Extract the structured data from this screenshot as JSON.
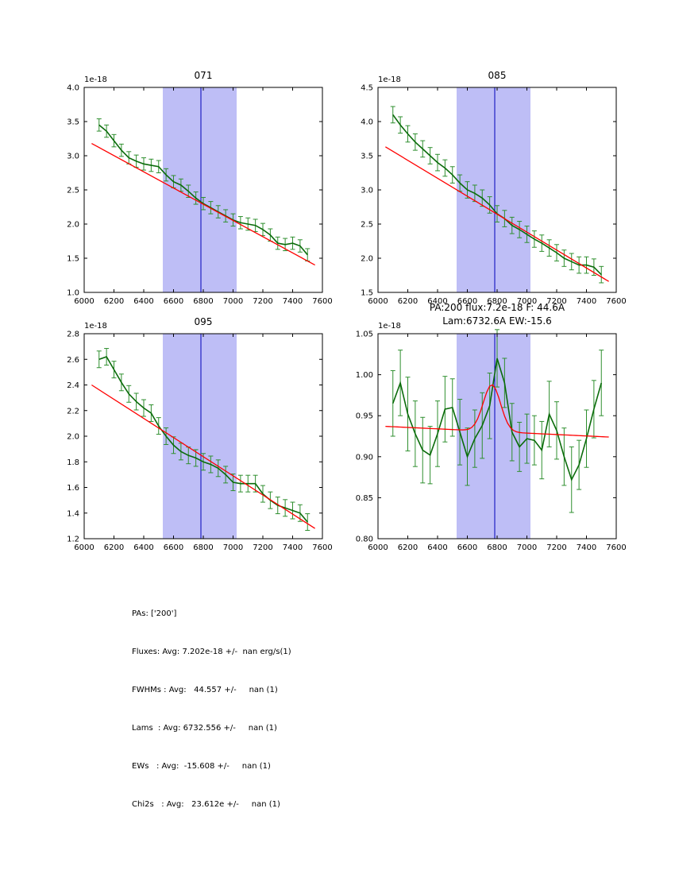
{
  "style": {
    "background": "#ffffff",
    "err_color": "#2f8f2f",
    "line_color": "#0a6b0a",
    "fit_color": "#ff0000",
    "band_color": "rgba(110,110,235,0.45)",
    "vline_color": "#0000bb",
    "axis_color": "#000000"
  },
  "footer_lines": [
    "PAs: ['200']",
    "Fluxes: Avg: 7.202e-18 +/-  nan erg/s(1)",
    "FWHMs : Avg:   44.557 +/-     nan (1)",
    "Lams  : Avg: 6732.556 +/-     nan (1)",
    "EWs   : Avg:  -15.608 +/-     nan (1)",
    "Chi2s   : Avg:   23.612e +/-     nan (1)"
  ],
  "chart_data": [
    {
      "type": "line",
      "title": "071",
      "offset_text": "1e-18",
      "xlim": [
        6000,
        7600
      ],
      "ylim": [
        1.0,
        4.0
      ],
      "xticks": {
        "values": [
          6000,
          6200,
          6400,
          6600,
          6800,
          7000,
          7200,
          7400,
          7600
        ],
        "labels": [
          "6000",
          "6200",
          "6400",
          "6600",
          "6800",
          "7000",
          "7200",
          "7400",
          "7600"
        ]
      },
      "yticks": {
        "values": [
          1.0,
          1.5,
          2.0,
          2.5,
          3.0,
          3.5,
          4.0
        ],
        "labels": [
          "1.0",
          "1.5",
          "2.0",
          "2.5",
          "3.0",
          "3.5",
          "4.0"
        ]
      },
      "band": {
        "x0": 6528,
        "x1": 7024
      },
      "vline": 6784,
      "x": [
        6100,
        6150,
        6200,
        6250,
        6300,
        6350,
        6400,
        6450,
        6500,
        6550,
        6600,
        6650,
        6700,
        6750,
        6800,
        6850,
        6900,
        6950,
        7000,
        7050,
        7100,
        7150,
        7200,
        7250,
        7300,
        7350,
        7400,
        7450,
        7500
      ],
      "y": [
        3.45,
        3.36,
        3.22,
        3.08,
        2.97,
        2.92,
        2.88,
        2.86,
        2.84,
        2.72,
        2.62,
        2.57,
        2.48,
        2.38,
        2.3,
        2.24,
        2.18,
        2.12,
        2.06,
        2.02,
        2.0,
        1.98,
        1.92,
        1.84,
        1.72,
        1.7,
        1.72,
        1.68,
        1.55
      ],
      "yerr": 0.09,
      "fit": {
        "type": "linear",
        "x": [
          6050,
          7550
        ],
        "y": [
          3.18,
          1.4
        ]
      }
    },
    {
      "type": "line",
      "title": "085",
      "offset_text": "1e-18",
      "xlim": [
        6000,
        7600
      ],
      "ylim": [
        1.5,
        4.5
      ],
      "xticks": {
        "values": [
          6000,
          6200,
          6400,
          6600,
          6800,
          7000,
          7200,
          7400,
          7600
        ],
        "labels": [
          "6000",
          "6200",
          "6400",
          "6600",
          "6800",
          "7000",
          "7200",
          "7400",
          "7600"
        ]
      },
      "yticks": {
        "values": [
          1.5,
          2.0,
          2.5,
          3.0,
          3.5,
          4.0,
          4.5
        ],
        "labels": [
          "1.5",
          "2.0",
          "2.5",
          "3.0",
          "3.5",
          "4.0",
          "4.5"
        ]
      },
      "band": {
        "x0": 6528,
        "x1": 7024
      },
      "vline": 6784,
      "x": [
        6100,
        6150,
        6200,
        6250,
        6300,
        6350,
        6400,
        6450,
        6500,
        6550,
        6600,
        6650,
        6700,
        6750,
        6800,
        6850,
        6900,
        6950,
        7000,
        7050,
        7100,
        7150,
        7200,
        7250,
        7300,
        7350,
        7400,
        7450,
        7500
      ],
      "y": [
        4.1,
        3.95,
        3.82,
        3.7,
        3.6,
        3.5,
        3.4,
        3.32,
        3.22,
        3.1,
        3.0,
        2.95,
        2.88,
        2.78,
        2.65,
        2.58,
        2.48,
        2.42,
        2.35,
        2.28,
        2.22,
        2.15,
        2.08,
        2.0,
        1.95,
        1.9,
        1.9,
        1.87,
        1.76
      ],
      "yerr": 0.12,
      "fit": {
        "type": "linear",
        "x": [
          6050,
          7550
        ],
        "y": [
          3.63,
          1.66
        ]
      }
    },
    {
      "type": "line",
      "title": "095",
      "offset_text": "1e-18",
      "xlim": [
        6000,
        7600
      ],
      "ylim": [
        1.2,
        2.8
      ],
      "xticks": {
        "values": [
          6000,
          6200,
          6400,
          6600,
          6800,
          7000,
          7200,
          7400,
          7600
        ],
        "labels": [
          "6000",
          "6200",
          "6400",
          "6600",
          "6800",
          "7000",
          "7200",
          "7400",
          "7600"
        ]
      },
      "yticks": {
        "values": [
          1.2,
          1.4,
          1.6,
          1.8,
          2.0,
          2.2,
          2.4,
          2.6,
          2.8
        ],
        "labels": [
          "1.2",
          "1.4",
          "1.6",
          "1.8",
          "2.0",
          "2.2",
          "2.4",
          "2.6",
          "2.8"
        ]
      },
      "band": {
        "x0": 6528,
        "x1": 7024
      },
      "vline": 6784,
      "x": [
        6100,
        6150,
        6200,
        6250,
        6300,
        6350,
        6400,
        6450,
        6500,
        6550,
        6600,
        6650,
        6700,
        6750,
        6800,
        6850,
        6900,
        6950,
        7000,
        7050,
        7100,
        7150,
        7200,
        7250,
        7300,
        7350,
        7400,
        7450,
        7500
      ],
      "y": [
        2.6,
        2.62,
        2.52,
        2.42,
        2.33,
        2.27,
        2.22,
        2.18,
        2.08,
        2.0,
        1.93,
        1.88,
        1.85,
        1.83,
        1.8,
        1.78,
        1.75,
        1.7,
        1.64,
        1.63,
        1.63,
        1.63,
        1.55,
        1.5,
        1.46,
        1.44,
        1.42,
        1.4,
        1.33
      ],
      "yerr": 0.065,
      "fit": {
        "type": "linear",
        "x": [
          6050,
          7550
        ],
        "y": [
          2.4,
          1.28
        ]
      }
    },
    {
      "type": "line",
      "title_lines": [
        "PA:200 flux:7.2e-18 F: 44.6A",
        "Lam:6732.6A EW:-15.6"
      ],
      "offset_text": "1e-18",
      "xlim": [
        6000,
        7600
      ],
      "ylim": [
        0.8,
        1.05
      ],
      "xticks": {
        "values": [
          6000,
          6200,
          6400,
          6600,
          6800,
          7000,
          7200,
          7400,
          7600
        ],
        "labels": [
          "6000",
          "6200",
          "6400",
          "6600",
          "6800",
          "7000",
          "7200",
          "7400",
          "7600"
        ]
      },
      "yticks": {
        "values": [
          0.8,
          0.85,
          0.9,
          0.95,
          1.0,
          1.05
        ],
        "labels": [
          "0.80",
          "0.85",
          "0.90",
          "0.95",
          "1.00",
          "1.05"
        ]
      },
      "band": {
        "x0": 6528,
        "x1": 7024
      },
      "vline": 6784,
      "x": [
        6100,
        6150,
        6200,
        6250,
        6300,
        6350,
        6400,
        6450,
        6500,
        6550,
        6600,
        6650,
        6700,
        6750,
        6800,
        6850,
        6900,
        6950,
        7000,
        7050,
        7100,
        7150,
        7200,
        7250,
        7300,
        7350,
        7400,
        7450,
        7500
      ],
      "y": [
        0.965,
        0.99,
        0.952,
        0.928,
        0.908,
        0.902,
        0.928,
        0.958,
        0.96,
        0.93,
        0.9,
        0.922,
        0.938,
        0.962,
        1.02,
        0.99,
        0.93,
        0.912,
        0.922,
        0.92,
        0.908,
        0.952,
        0.932,
        0.9,
        0.872,
        0.89,
        0.922,
        0.958,
        0.99
      ],
      "yerr": [
        0.04,
        0.04,
        0.045,
        0.04,
        0.04,
        0.035,
        0.04,
        0.04,
        0.035,
        0.04,
        0.035,
        0.035,
        0.04,
        0.04,
        0.035,
        0.03,
        0.035,
        0.03,
        0.03,
        0.03,
        0.035,
        0.04,
        0.035,
        0.035,
        0.04,
        0.03,
        0.035,
        0.035,
        0.04
      ],
      "fit": {
        "type": "gaussian_linear",
        "x0": 6050,
        "x1": 7550,
        "base_y0": 0.937,
        "base_y1": 0.924,
        "amp": 0.057,
        "center": 6765,
        "sigma": 58
      }
    }
  ]
}
